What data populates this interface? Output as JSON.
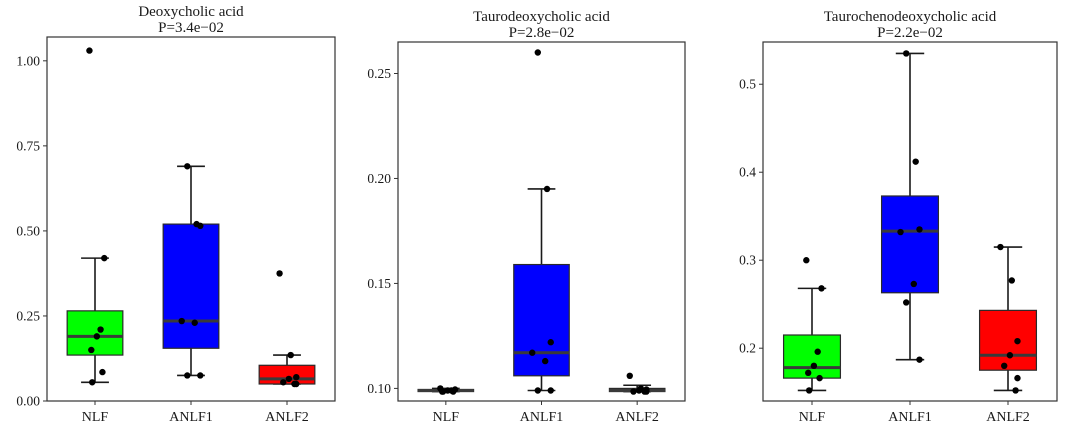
{
  "chart_data": [
    {
      "type": "box",
      "title": "Deoxycholic acid",
      "subtitle": "P=3.4e−02",
      "categories": [
        "NLF",
        "ANLF1",
        "ANLF2"
      ],
      "colors": [
        "#00ff00",
        "#0000ff",
        "#ff0000"
      ],
      "ylim": [
        0,
        1.07
      ],
      "yticks": [
        0.0,
        0.25,
        0.5,
        0.75,
        1.0
      ],
      "ytick_labels": [
        "0.00",
        "0.25",
        "0.50",
        "0.75",
        "1.00"
      ],
      "grid": false,
      "boxes": [
        {
          "whisker_low": 0.055,
          "q1": 0.135,
          "median": 0.19,
          "q3": 0.265,
          "whisker_high": 0.42
        },
        {
          "whisker_low": 0.075,
          "q1": 0.155,
          "median": 0.235,
          "q3": 0.52,
          "whisker_high": 0.69
        },
        {
          "whisker_low": 0.05,
          "q1": 0.05,
          "median": 0.065,
          "q3": 0.105,
          "whisker_high": 0.135
        }
      ],
      "points": [
        [
          1.03,
          0.42,
          0.21,
          0.19,
          0.15,
          0.085,
          0.055
        ],
        [
          0.69,
          0.52,
          0.515,
          0.235,
          0.23,
          0.075,
          0.075
        ],
        [
          0.375,
          0.135,
          0.07,
          0.065,
          0.055,
          0.05,
          0.05
        ]
      ]
    },
    {
      "type": "box",
      "title": "Taurodeoxycholic acid",
      "subtitle": "P=2.8e−02",
      "categories": [
        "NLF",
        "ANLF1",
        "ANLF2"
      ],
      "colors": [
        "#00ff00",
        "#0000ff",
        "#ff0000"
      ],
      "ylim": [
        0.094,
        0.265
      ],
      "yticks": [
        0.1,
        0.15,
        0.2,
        0.25
      ],
      "ytick_labels": [
        "0.10",
        "0.15",
        "0.20",
        "0.25"
      ],
      "grid": false,
      "boxes": [
        {
          "whisker_low": 0.0985,
          "q1": 0.0985,
          "median": 0.099,
          "q3": 0.0995,
          "whisker_high": 0.1
        },
        {
          "whisker_low": 0.099,
          "q1": 0.106,
          "median": 0.117,
          "q3": 0.159,
          "whisker_high": 0.195
        },
        {
          "whisker_low": 0.0985,
          "q1": 0.0985,
          "median": 0.099,
          "q3": 0.1,
          "whisker_high": 0.1015
        }
      ],
      "points": [
        [
          0.1,
          0.0995,
          0.099,
          0.099,
          0.0985,
          0.0985,
          0.0985
        ],
        [
          0.26,
          0.195,
          0.122,
          0.117,
          0.113,
          0.099,
          0.099
        ],
        [
          0.106,
          0.1,
          0.0995,
          0.099,
          0.0985,
          0.0985,
          0.0985
        ]
      ]
    },
    {
      "type": "box",
      "title": "Taurochenodeoxycholic acid",
      "subtitle": "P=2.2e−02",
      "categories": [
        "NLF",
        "ANLF1",
        "ANLF2"
      ],
      "colors": [
        "#00ff00",
        "#0000ff",
        "#ff0000"
      ],
      "ylim": [
        0.14,
        0.548
      ],
      "yticks": [
        0.2,
        0.3,
        0.4,
        0.5
      ],
      "ytick_labels": [
        "0.2",
        "0.3",
        "0.4",
        "0.5"
      ],
      "grid": false,
      "boxes": [
        {
          "whisker_low": 0.152,
          "q1": 0.166,
          "median": 0.178,
          "q3": 0.215,
          "whisker_high": 0.268
        },
        {
          "whisker_low": 0.187,
          "q1": 0.263,
          "median": 0.333,
          "q3": 0.373,
          "whisker_high": 0.535
        },
        {
          "whisker_low": 0.152,
          "q1": 0.175,
          "median": 0.192,
          "q3": 0.243,
          "whisker_high": 0.315
        }
      ],
      "points": [
        [
          0.3,
          0.268,
          0.196,
          0.18,
          0.172,
          0.166,
          0.152
        ],
        [
          0.535,
          0.412,
          0.335,
          0.332,
          0.273,
          0.252,
          0.187
        ],
        [
          0.315,
          0.277,
          0.208,
          0.192,
          0.18,
          0.166,
          0.152
        ]
      ]
    }
  ]
}
